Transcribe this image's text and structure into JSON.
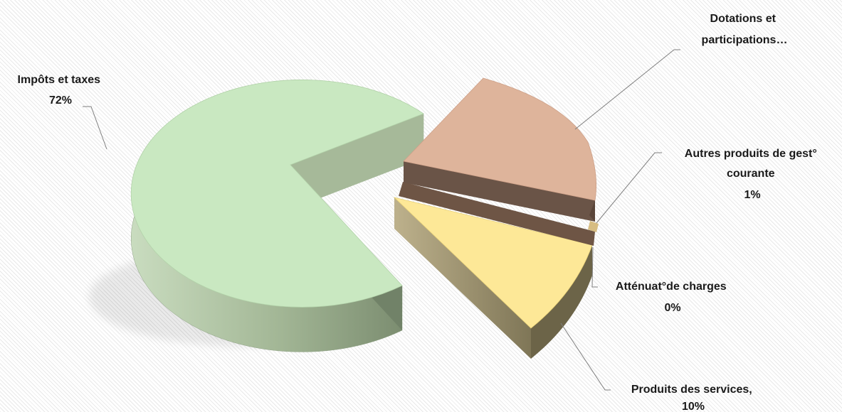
{
  "chart_data": {
    "type": "pie",
    "style": "3d-exploded",
    "slices": [
      {
        "label": "Impôts et taxes",
        "value_text": "72%",
        "value": 72,
        "color": "#c7e6bf"
      },
      {
        "label": "Dotations et participations…",
        "value_text": "",
        "value": 17,
        "color": "#ddb39a"
      },
      {
        "label": "Autres produits de gest° courante",
        "value_text": "1%",
        "value": 1,
        "color": "#e7c98a"
      },
      {
        "label": "Atténuat°de charges",
        "value_text": "0%",
        "value": 0.3,
        "color": "#d9b98a"
      },
      {
        "label": "Produits des services,",
        "value_text": "10%",
        "value": 10,
        "color": "#fbe99a"
      }
    ],
    "legend": "none",
    "data_labels": "outside-with-leader-lines"
  }
}
